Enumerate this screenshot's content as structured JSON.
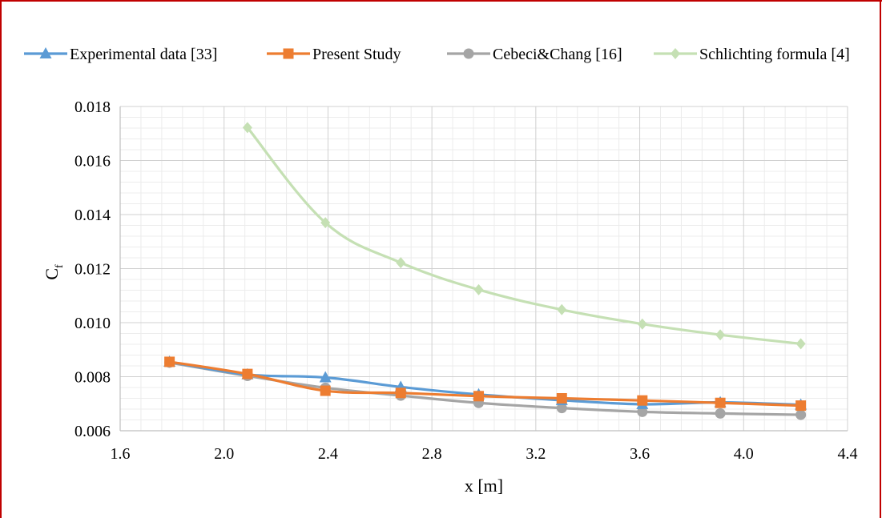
{
  "chart_data": {
    "type": "line",
    "title": "",
    "xlabel": "x [m]",
    "ylabel_main": "C",
    "ylabel_sub": "f",
    "xlim": [
      1.6,
      4.4
    ],
    "ylim": [
      0.006,
      0.018
    ],
    "x_ticks": [
      "1.6",
      "2.0",
      "2.4",
      "2.8",
      "3.2",
      "3.6",
      "4.0",
      "4.4"
    ],
    "y_ticks": [
      "0.006",
      "0.008",
      "0.010",
      "0.012",
      "0.014",
      "0.016",
      "0.018"
    ],
    "grid": true,
    "legend_position": "top",
    "series": [
      {
        "name": "Experimental data [33]",
        "color": "#5b9bd5",
        "marker": "triangle",
        "x": [
          1.79,
          2.09,
          2.39,
          2.68,
          2.98,
          3.3,
          3.61,
          3.91,
          4.22
        ],
        "y": [
          0.00855,
          0.00808,
          0.00797,
          0.00762,
          0.00734,
          0.00713,
          0.00698,
          0.00705,
          0.00696
        ]
      },
      {
        "name": "Present Study",
        "color": "#ed7d31",
        "marker": "square",
        "x": [
          1.79,
          2.09,
          2.39,
          2.68,
          2.98,
          3.3,
          3.61,
          3.91,
          4.22
        ],
        "y": [
          0.00855,
          0.0081,
          0.00748,
          0.0074,
          0.00728,
          0.0072,
          0.00712,
          0.00703,
          0.00693
        ]
      },
      {
        "name": "Cebeci&Chang [16]",
        "color": "#a5a5a5",
        "marker": "circle",
        "x": [
          1.79,
          2.09,
          2.39,
          2.68,
          2.98,
          3.3,
          3.61,
          3.91,
          4.22
        ],
        "y": [
          0.00852,
          0.00803,
          0.00759,
          0.0073,
          0.00703,
          0.00684,
          0.0067,
          0.00664,
          0.00659
        ]
      },
      {
        "name": "Schlichting formula [4]",
        "color": "#c5e0b4",
        "marker": "diamond",
        "x": [
          2.09,
          2.39,
          2.68,
          2.98,
          3.3,
          3.61,
          3.91,
          4.22
        ],
        "y": [
          0.01722,
          0.0137,
          0.01222,
          0.01122,
          0.01048,
          0.00995,
          0.00955,
          0.00922
        ]
      }
    ]
  }
}
